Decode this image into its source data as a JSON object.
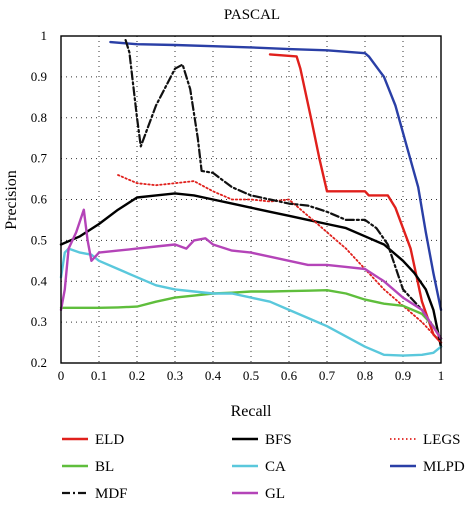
{
  "chart_data": {
    "type": "line",
    "title": "PASCAL",
    "xlabel": "Recall",
    "ylabel": "Precision",
    "xlim": [
      0,
      1
    ],
    "ylim": [
      0.2,
      1
    ],
    "x_ticks": [
      "0",
      "0.1",
      "0.2",
      "0.3",
      "0.4",
      "0.5",
      "0.6",
      "0.7",
      "0.8",
      "0.9",
      "1"
    ],
    "y_ticks": [
      "0.2",
      "0.3",
      "0.4",
      "0.5",
      "0.6",
      "0.7",
      "0.8",
      "0.9",
      "1"
    ],
    "grid": true,
    "legend_position": "below",
    "series": [
      {
        "name": "ELD",
        "color": "#e0201c",
        "dash": "solid",
        "x": [
          0.55,
          0.62,
          0.63,
          0.66,
          0.68,
          0.7,
          0.8,
          0.81,
          0.86,
          0.88,
          0.92,
          0.95,
          0.98,
          1.0
        ],
        "y": [
          0.955,
          0.95,
          0.92,
          0.79,
          0.7,
          0.62,
          0.62,
          0.61,
          0.61,
          0.58,
          0.48,
          0.35,
          0.27,
          0.25
        ]
      },
      {
        "name": "BFS",
        "color": "#000000",
        "dash": "solid",
        "x": [
          0.0,
          0.05,
          0.1,
          0.15,
          0.2,
          0.25,
          0.3,
          0.35,
          0.4,
          0.45,
          0.5,
          0.55,
          0.6,
          0.65,
          0.7,
          0.75,
          0.8,
          0.85,
          0.9,
          0.93,
          0.96,
          0.98,
          1.0
        ],
        "y": [
          0.49,
          0.51,
          0.54,
          0.575,
          0.605,
          0.61,
          0.615,
          0.61,
          0.6,
          0.59,
          0.58,
          0.57,
          0.56,
          0.55,
          0.54,
          0.53,
          0.51,
          0.49,
          0.45,
          0.42,
          0.38,
          0.33,
          0.24
        ]
      },
      {
        "name": "LEGS",
        "color": "#e0201c",
        "dash": "dotted",
        "x": [
          0.15,
          0.2,
          0.25,
          0.3,
          0.35,
          0.4,
          0.45,
          0.5,
          0.55,
          0.6,
          0.65,
          0.7,
          0.75,
          0.8,
          0.85,
          0.9,
          0.95,
          0.98,
          1.0
        ],
        "y": [
          0.66,
          0.64,
          0.635,
          0.64,
          0.645,
          0.62,
          0.6,
          0.6,
          0.595,
          0.6,
          0.56,
          0.52,
          0.48,
          0.43,
          0.38,
          0.34,
          0.3,
          0.27,
          0.25
        ]
      },
      {
        "name": "BL",
        "color": "#5fbe3c",
        "dash": "solid",
        "x": [
          0.0,
          0.05,
          0.1,
          0.15,
          0.2,
          0.25,
          0.3,
          0.35,
          0.4,
          0.45,
          0.5,
          0.55,
          0.6,
          0.65,
          0.7,
          0.75,
          0.8,
          0.85,
          0.9,
          0.95,
          0.98,
          1.0
        ],
        "y": [
          0.335,
          0.335,
          0.335,
          0.336,
          0.338,
          0.35,
          0.36,
          0.365,
          0.37,
          0.372,
          0.375,
          0.375,
          0.376,
          0.377,
          0.378,
          0.37,
          0.355,
          0.345,
          0.34,
          0.32,
          0.29,
          0.26
        ]
      },
      {
        "name": "CA",
        "color": "#5ac8dc",
        "dash": "solid",
        "x": [
          0.0,
          0.01,
          0.02,
          0.05,
          0.08,
          0.1,
          0.15,
          0.2,
          0.25,
          0.3,
          0.35,
          0.4,
          0.45,
          0.5,
          0.55,
          0.6,
          0.65,
          0.7,
          0.75,
          0.8,
          0.85,
          0.9,
          0.95,
          0.98,
          1.0
        ],
        "y": [
          0.41,
          0.47,
          0.48,
          0.47,
          0.465,
          0.45,
          0.43,
          0.41,
          0.39,
          0.38,
          0.375,
          0.37,
          0.37,
          0.36,
          0.35,
          0.33,
          0.31,
          0.29,
          0.265,
          0.24,
          0.22,
          0.218,
          0.22,
          0.225,
          0.24
        ]
      },
      {
        "name": "MLPD",
        "color": "#2a3fa6",
        "dash": "solid",
        "x": [
          0.13,
          0.2,
          0.3,
          0.4,
          0.5,
          0.6,
          0.7,
          0.8,
          0.81,
          0.85,
          0.88,
          0.91,
          0.94,
          0.96,
          0.98,
          1.0
        ],
        "y": [
          0.985,
          0.98,
          0.978,
          0.975,
          0.972,
          0.968,
          0.965,
          0.958,
          0.95,
          0.9,
          0.83,
          0.73,
          0.63,
          0.52,
          0.42,
          0.33
        ]
      },
      {
        "name": "MDF",
        "color": "#111111",
        "dash": "dashdot",
        "x": [
          0.17,
          0.18,
          0.2,
          0.21,
          0.25,
          0.3,
          0.32,
          0.34,
          0.36,
          0.37,
          0.4,
          0.45,
          0.5,
          0.55,
          0.6,
          0.65,
          0.7,
          0.75,
          0.8,
          0.83,
          0.86,
          0.9,
          0.95,
          1.0
        ],
        "y": [
          0.99,
          0.96,
          0.8,
          0.73,
          0.83,
          0.92,
          0.93,
          0.87,
          0.75,
          0.67,
          0.665,
          0.63,
          0.61,
          0.6,
          0.59,
          0.585,
          0.57,
          0.55,
          0.55,
          0.53,
          0.49,
          0.38,
          0.33,
          0.26
        ]
      },
      {
        "name": "GL",
        "color": "#b444b8",
        "dash": "solid",
        "x": [
          0.0,
          0.01,
          0.02,
          0.04,
          0.06,
          0.07,
          0.08,
          0.1,
          0.15,
          0.2,
          0.25,
          0.3,
          0.33,
          0.35,
          0.38,
          0.4,
          0.45,
          0.5,
          0.55,
          0.6,
          0.65,
          0.7,
          0.75,
          0.8,
          0.85,
          0.9,
          0.95,
          1.0
        ],
        "y": [
          0.33,
          0.38,
          0.48,
          0.52,
          0.575,
          0.5,
          0.45,
          0.47,
          0.475,
          0.48,
          0.485,
          0.49,
          0.48,
          0.5,
          0.505,
          0.49,
          0.475,
          0.47,
          0.46,
          0.45,
          0.44,
          0.44,
          0.435,
          0.43,
          0.4,
          0.36,
          0.33,
          0.26
        ]
      }
    ]
  }
}
